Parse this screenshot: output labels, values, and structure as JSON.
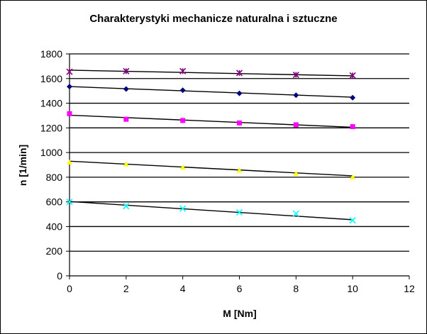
{
  "chart_data": {
    "type": "scatter",
    "title": "Charakterystyki mechanicze naturalna i sztuczne",
    "xlabel": "M [Nm]",
    "ylabel": "n [1/min]",
    "xlim": [
      0,
      12
    ],
    "ylim": [
      0,
      1800
    ],
    "x_ticks": [
      0,
      2,
      4,
      6,
      8,
      10,
      12
    ],
    "y_ticks": [
      0,
      200,
      400,
      600,
      800,
      1000,
      1200,
      1400,
      1600,
      1800
    ],
    "grid": "horizontal major gridlines",
    "legend": "none",
    "x": [
      0,
      2,
      4,
      6,
      8,
      10
    ],
    "series": [
      {
        "marker": "star",
        "color": "#800080",
        "values": [
          1655,
          1660,
          1660,
          1645,
          1630,
          1625
        ],
        "trendline": [
          1668,
          1622
        ]
      },
      {
        "marker": "diamond",
        "color": "#000080",
        "values": [
          1535,
          1515,
          1505,
          1480,
          1465,
          1445
        ],
        "trendline": [
          1535,
          1449
        ]
      },
      {
        "marker": "square",
        "color": "#ff00ff",
        "values": [
          1315,
          1270,
          1260,
          1240,
          1225,
          1210
        ],
        "trendline": [
          1303,
          1205
        ]
      },
      {
        "marker": "triangle",
        "color": "#ffff00",
        "values": [
          920,
          905,
          880,
          855,
          830,
          800
        ],
        "trendline": [
          930,
          811
        ]
      },
      {
        "marker": "x",
        "color": "#00ffff",
        "values": [
          600,
          565,
          545,
          515,
          505,
          450
        ],
        "trendline": [
          603,
          455
        ]
      }
    ]
  }
}
